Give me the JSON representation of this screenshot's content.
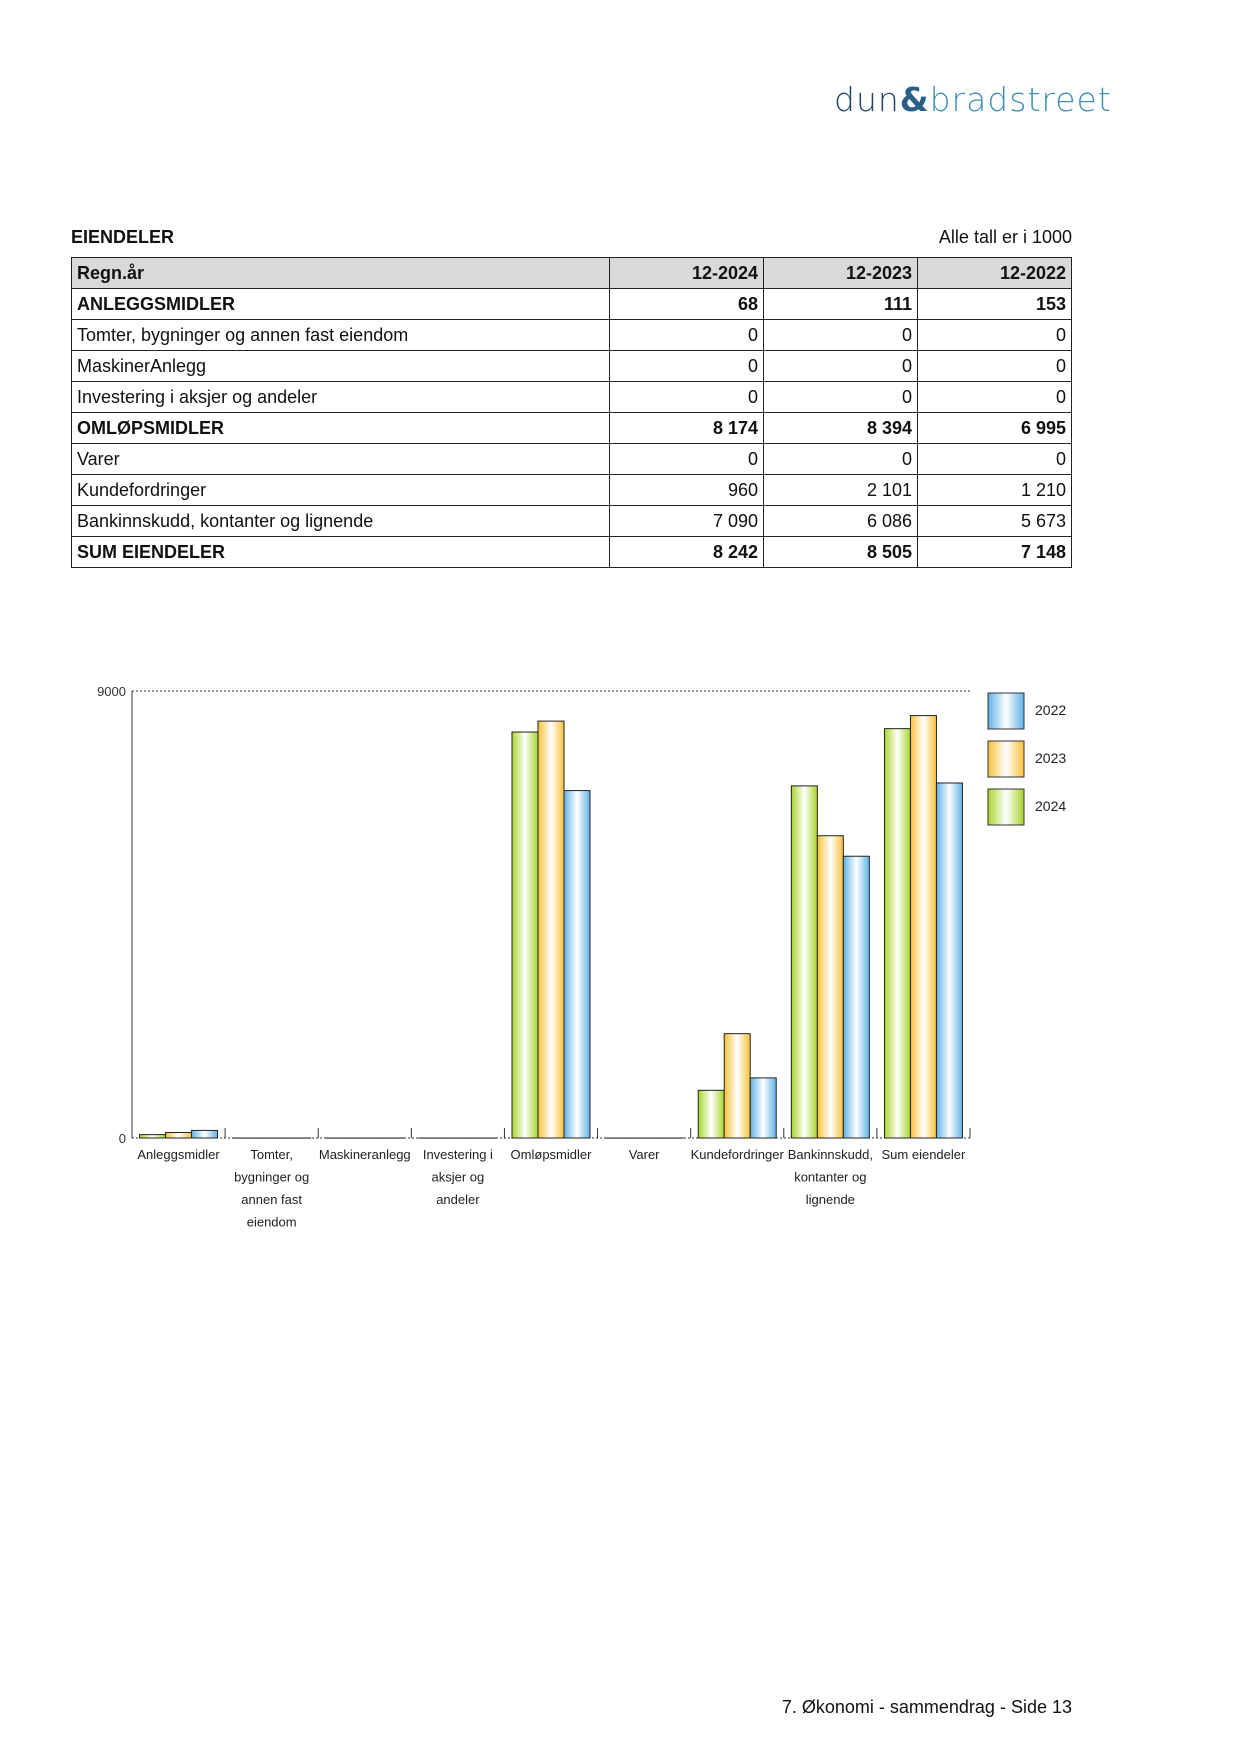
{
  "logo": {
    "text": "dun & bradstreet"
  },
  "section": {
    "title": "EIENDELER",
    "unit_note": "Alle tall er i 1000"
  },
  "table": {
    "headers": [
      "Regn.år",
      "12-2024",
      "12-2023",
      "12-2022"
    ],
    "rows": [
      {
        "label": "ANLEGGSMIDLER",
        "bold": true,
        "values": [
          "68",
          "111",
          "153"
        ]
      },
      {
        "label": "Tomter, bygninger og annen fast eiendom",
        "bold": false,
        "values": [
          "0",
          "0",
          "0"
        ]
      },
      {
        "label": "MaskinerAnlegg",
        "bold": false,
        "values": [
          "0",
          "0",
          "0"
        ]
      },
      {
        "label": "Investering i aksjer og andeler",
        "bold": false,
        "values": [
          "0",
          "0",
          "0"
        ]
      },
      {
        "label": "OMLØPSMIDLER",
        "bold": true,
        "values": [
          "8 174",
          "8 394",
          "6 995"
        ]
      },
      {
        "label": "Varer",
        "bold": false,
        "values": [
          "0",
          "0",
          "0"
        ]
      },
      {
        "label": "Kundefordringer",
        "bold": false,
        "values": [
          "960",
          "2 101",
          "1 210"
        ]
      },
      {
        "label": "Bankinnskudd, kontanter og lignende",
        "bold": false,
        "values": [
          "7 090",
          "6 086",
          "5 673"
        ]
      },
      {
        "label": "SUM EIENDELER",
        "bold": true,
        "values": [
          "8 242",
          "8 505",
          "7 148"
        ]
      }
    ]
  },
  "chart_data": {
    "type": "bar",
    "ylim": [
      0,
      9000
    ],
    "yticks": [
      "0",
      "9000"
    ],
    "categories": [
      [
        "Anleggsmidler"
      ],
      [
        "Tomter,",
        "bygninger og",
        "annen fast",
        "eiendom"
      ],
      [
        "Maskineranlegg"
      ],
      [
        "Investering i",
        "aksjer og",
        "andeler"
      ],
      [
        "Omløpsmidler"
      ],
      [
        "Varer"
      ],
      [
        "Kundefordringer"
      ],
      [
        "Bankinnskudd,",
        "kontanter og",
        "lignende"
      ],
      [
        "Sum eiendeler"
      ]
    ],
    "series": [
      {
        "name": "2024",
        "color": "#a8d42c",
        "values": [
          68,
          0,
          0,
          0,
          8174,
          0,
          960,
          7090,
          8242
        ]
      },
      {
        "name": "2023",
        "color": "#f7c23a",
        "values": [
          111,
          0,
          0,
          0,
          8394,
          0,
          2101,
          6086,
          8505
        ]
      },
      {
        "name": "2022",
        "color": "#5fb1e6",
        "values": [
          153,
          0,
          0,
          0,
          6995,
          0,
          1210,
          5673,
          7148
        ]
      }
    ],
    "legend": [
      "2022",
      "2023",
      "2024"
    ],
    "legend_position": "right"
  },
  "footer": {
    "text": "7. Økonomi - sammendrag - Side 13"
  }
}
